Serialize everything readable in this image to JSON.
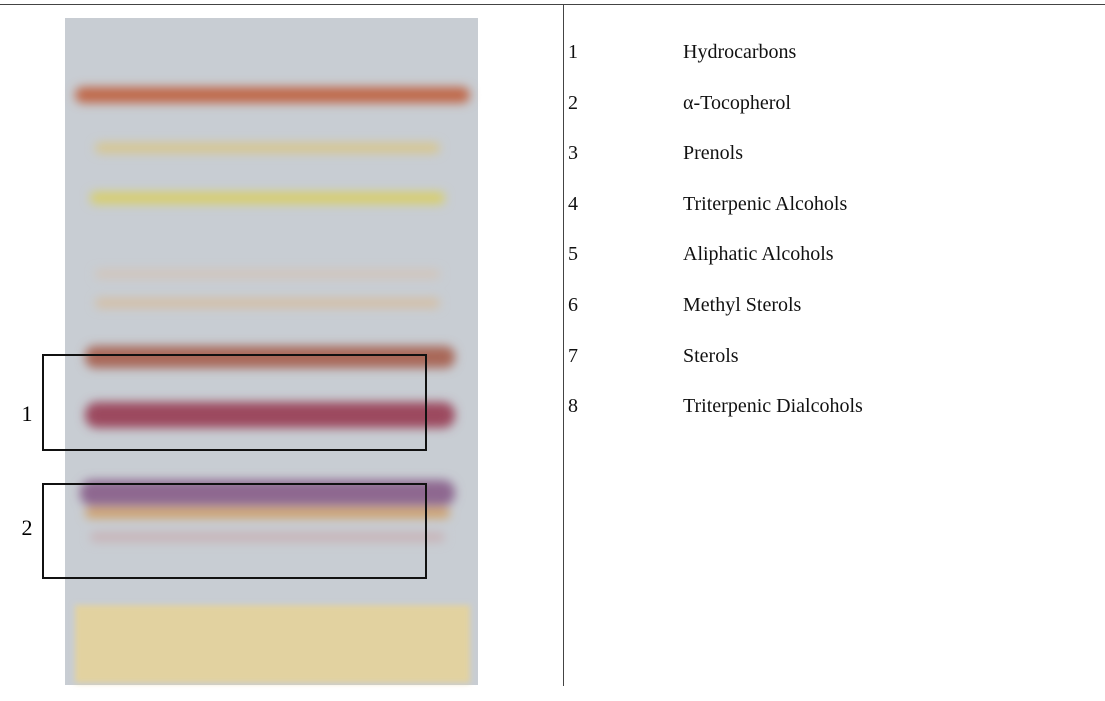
{
  "figure": {
    "box_labels": [
      "1",
      "2"
    ]
  },
  "table": {
    "rows": [
      [
        "1",
        "Hydrocarbons"
      ],
      [
        "2",
        "α-Tocopherol"
      ],
      [
        "3",
        "Prenols"
      ],
      [
        "4",
        "Triterpenic Alcohols"
      ],
      [
        "5",
        "Aliphatic Alcohols"
      ],
      [
        "6",
        "Methyl Sterols"
      ],
      [
        "7",
        "Sterols"
      ],
      [
        "8",
        "Triterpenic Dialcohols"
      ]
    ]
  }
}
